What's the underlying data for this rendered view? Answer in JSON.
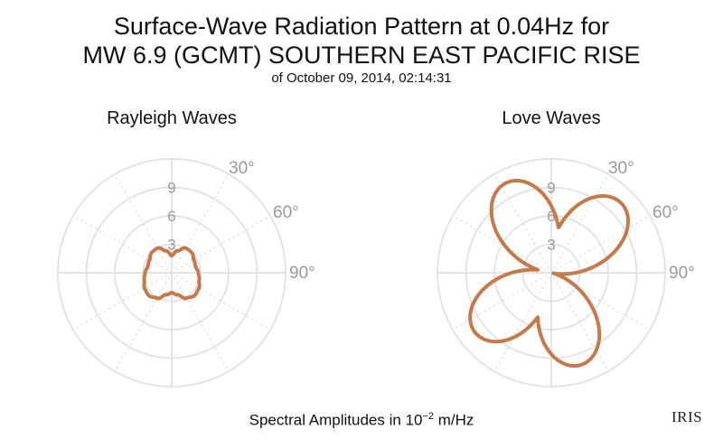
{
  "title_line1": "Surface-Wave Radiation Pattern at 0.04Hz for",
  "title_line2": "MW 6.9 (GCMT) SOUTHERN EAST PACIFIC RISE",
  "subtitle": "of October 09, 2014, 02:14:31",
  "footer": {
    "prefix": "Spectral Amplitudes in 10",
    "exponent": "−2",
    "suffix": " m/Hz"
  },
  "logo": "IRIS",
  "colors": {
    "pattern": "#c47a4a",
    "grid": "#e4e4e4",
    "tick": "#9a9a9a"
  },
  "chart_data": [
    {
      "type": "polar",
      "title": "Rayleigh Waves",
      "rlim": [
        0,
        12
      ],
      "r_ticks": [
        "3",
        "6",
        "9"
      ],
      "angle_ticks": [
        "30°",
        "60°",
        "90°"
      ],
      "series": [
        {
          "angle_deg": [
            0,
            15,
            30,
            45,
            60,
            75,
            90,
            105,
            120,
            135,
            150,
            165,
            180,
            195,
            210,
            225,
            240,
            255,
            270,
            285,
            300,
            315,
            330,
            345
          ],
          "amplitude": [
            1.8,
            2.4,
            3.0,
            3.0,
            2.7,
            2.6,
            2.8,
            3.0,
            3.3,
            3.4,
            3.1,
            2.4,
            2.1,
            2.4,
            3.1,
            3.4,
            3.3,
            3.0,
            2.8,
            2.6,
            2.7,
            3.0,
            3.0,
            2.4
          ]
        }
      ]
    },
    {
      "type": "polar",
      "title": "Love Waves",
      "rlim": [
        0,
        12
      ],
      "r_ticks": [
        "3",
        "6",
        "9"
      ],
      "angle_ticks": [
        "30°",
        "60°",
        "90°"
      ],
      "series": [
        {
          "lobes": [
            {
              "center_deg": 45,
              "peak": 10.4
            },
            {
              "center_deg": 162,
              "peak": 10.2
            },
            {
              "center_deg": 232,
              "peak": 10.2
            },
            {
              "center_deg": 333,
              "peak": 10.6
            }
          ],
          "lobe_shape": "sin(2θ) cardioid petals"
        }
      ]
    }
  ]
}
